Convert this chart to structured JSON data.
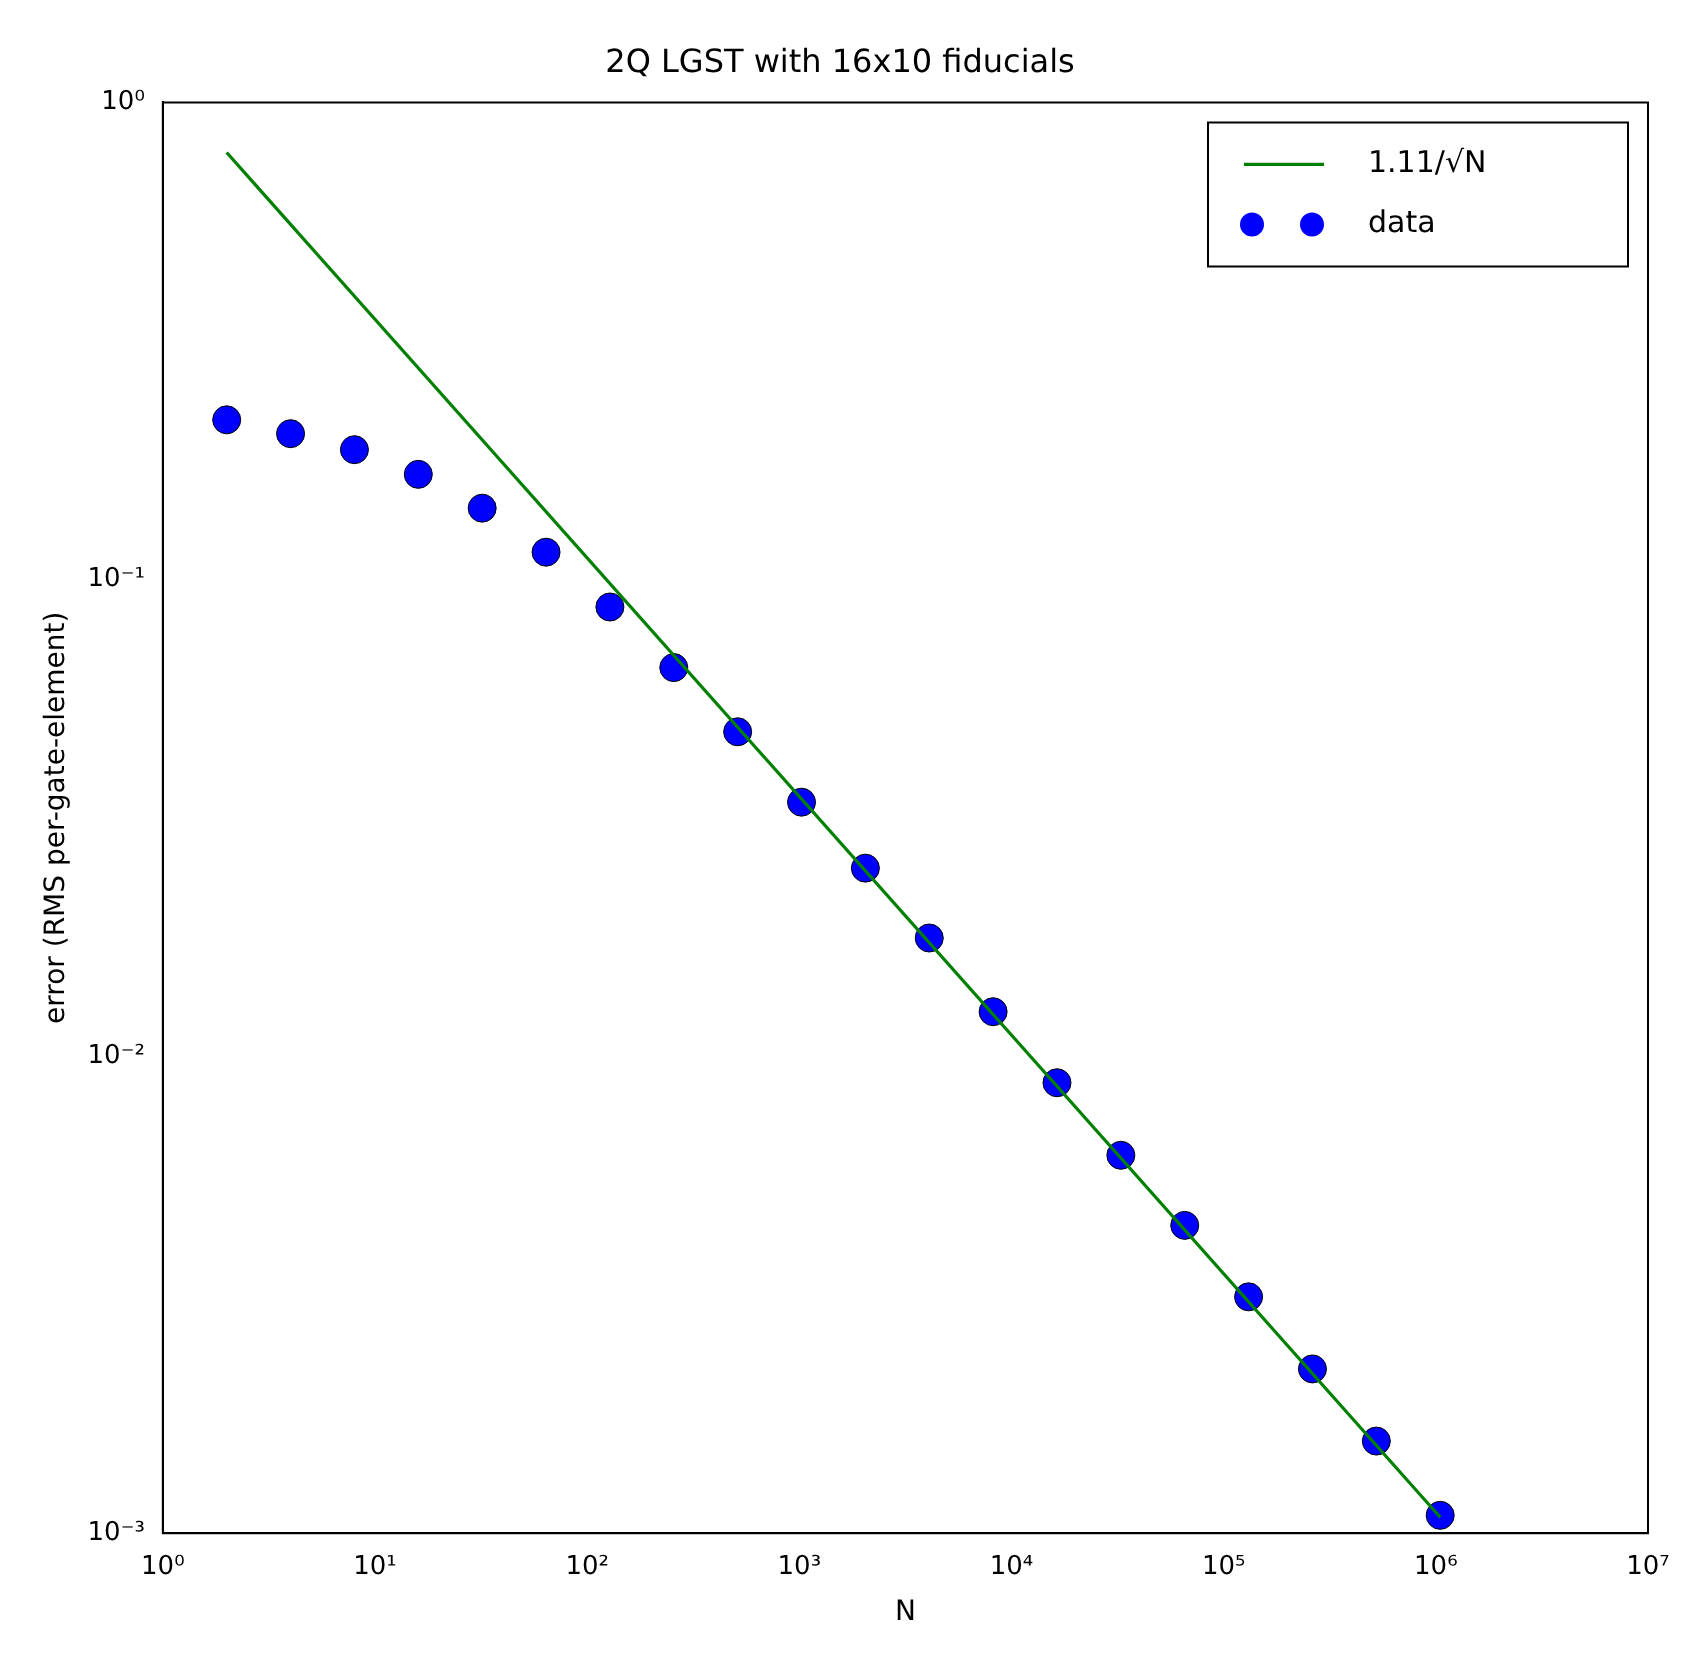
{
  "chart_data": {
    "type": "scatter",
    "title": "2Q LGST with 16x10 fiducials",
    "xlabel": "N",
    "ylabel": "error (RMS per-gate-element)",
    "log": "xy",
    "grid": false,
    "legend": "top right",
    "marker": "circle",
    "xlim": [
      1,
      10000000
    ],
    "ylim": [
      0.001,
      1
    ],
    "xticks": [
      {
        "value": 1,
        "label": "10⁰"
      },
      {
        "value": 10,
        "label": "10¹"
      },
      {
        "value": 100,
        "label": "10²"
      },
      {
        "value": 1000,
        "label": "10³"
      },
      {
        "value": 10000,
        "label": "10⁴"
      },
      {
        "value": 100000,
        "label": "10⁵"
      },
      {
        "value": 1000000,
        "label": "10⁶"
      },
      {
        "value": 10000000,
        "label": "10⁷"
      }
    ],
    "yticks": [
      {
        "value": 0.001,
        "label": "10⁻³"
      },
      {
        "value": 0.01,
        "label": "10⁻²"
      },
      {
        "value": 0.1,
        "label": "10⁻¹"
      },
      {
        "value": 1,
        "label": "10⁰"
      }
    ],
    "series": [
      {
        "name": "1.11/√N",
        "type": "line",
        "color": "#008000",
        "marker": "none",
        "line_style": "solid",
        "x": [
          2,
          1048576
        ],
        "values": [
          0.785,
          0.00108
        ]
      },
      {
        "name": "data",
        "type": "scatter",
        "color": "#0000ff",
        "x": [
          2,
          4,
          8,
          16,
          32,
          64,
          128,
          256,
          512,
          1024,
          2048,
          4096,
          8192,
          16384,
          32768,
          65536,
          131072,
          262144,
          524288,
          1048576
        ],
        "values": [
          0.216,
          0.202,
          0.187,
          0.166,
          0.141,
          0.114,
          0.0875,
          0.0653,
          0.0479,
          0.0341,
          0.0248,
          0.0177,
          0.0124,
          0.0088,
          0.0062,
          0.00442,
          0.00313,
          0.00221,
          0.00156,
          0.00109
        ]
      }
    ]
  }
}
